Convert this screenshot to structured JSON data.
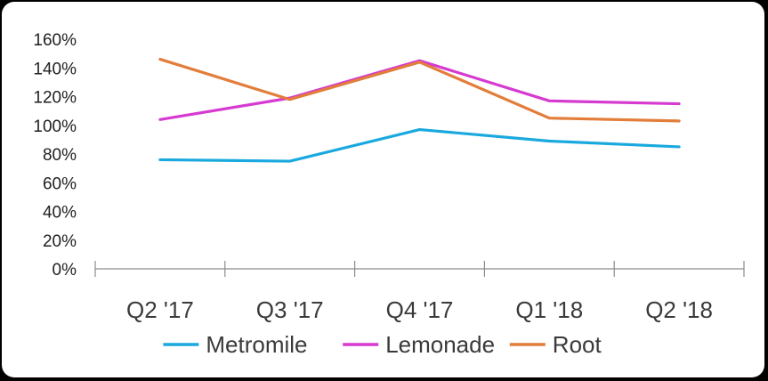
{
  "chart_data": {
    "type": "line",
    "categories": [
      "Q2 '17",
      "Q3 '17",
      "Q4 '17",
      "Q1 '18",
      "Q2 '18"
    ],
    "series": [
      {
        "name": "Metromile",
        "color": "#1aa9de",
        "values": [
          76,
          75,
          97,
          89,
          85
        ]
      },
      {
        "name": "Lemonade",
        "color": "#d63ad1",
        "values": [
          104,
          119,
          145,
          117,
          115
        ]
      },
      {
        "name": "Root",
        "color": "#e27d3a",
        "values": [
          146,
          118,
          144,
          105,
          103
        ]
      }
    ],
    "y_ticks": [
      "0%",
      "20%",
      "40%",
      "60%",
      "80%",
      "100%",
      "120%",
      "140%",
      "160%"
    ],
    "ylim": [
      0,
      160
    ],
    "title": "",
    "xlabel": "",
    "ylabel": "",
    "grid": false,
    "legend_position": "bottom"
  }
}
